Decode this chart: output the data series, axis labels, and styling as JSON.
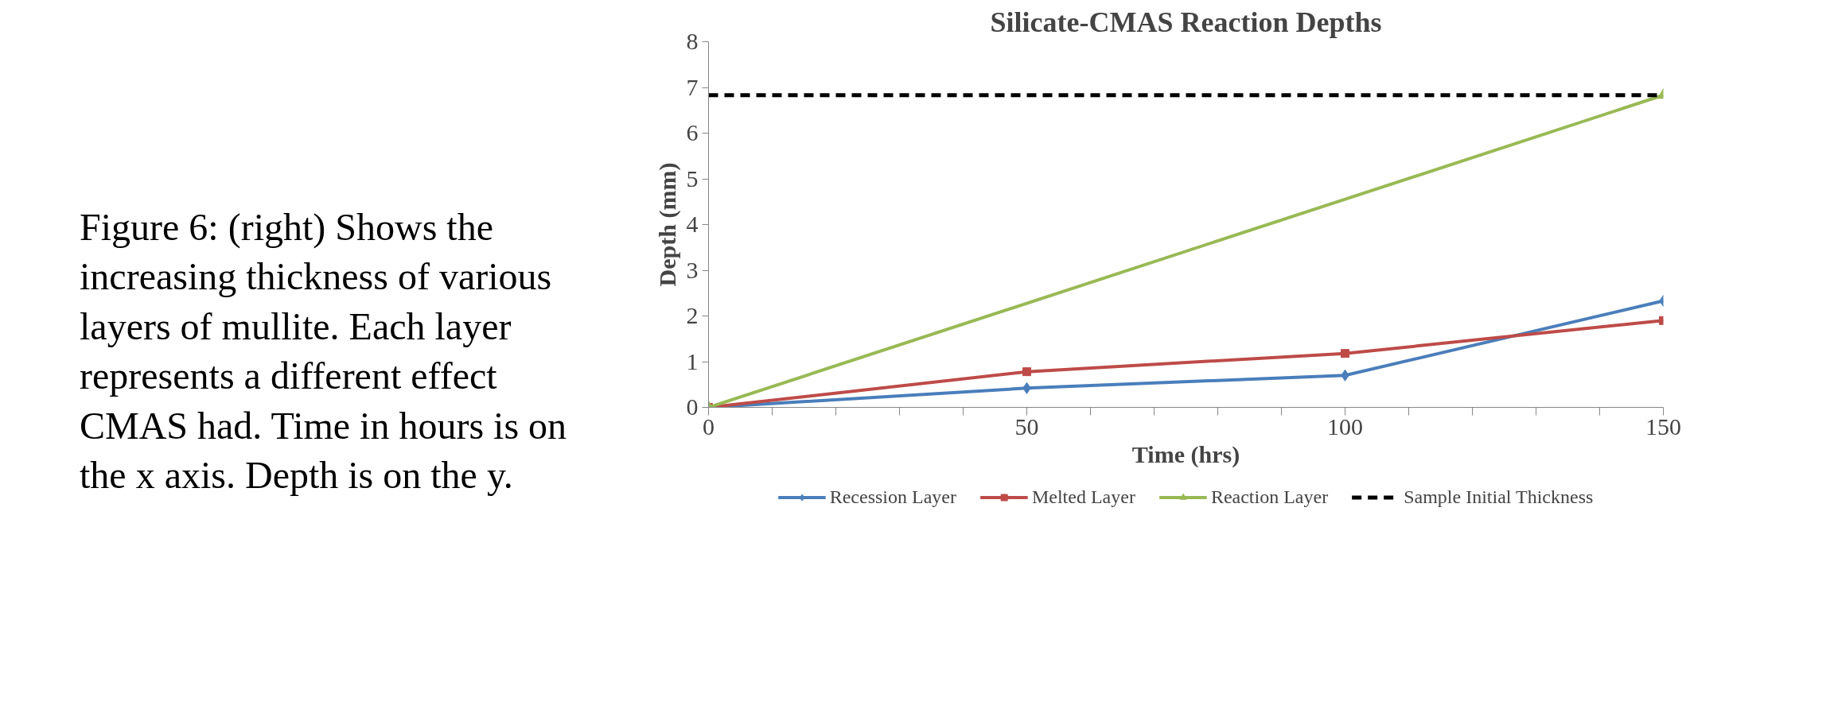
{
  "chart_data": {
    "type": "line",
    "title": "Silicate-CMAS Reaction Depths",
    "xlabel": "Time (hrs)",
    "ylabel": "Depth (mm)",
    "annotations": [
      "Figure 6: (right) Shows the increasing thickness of various layers of mullite. Each layer represents a different effect CMAS had. Time in hours is on the x axis.  Depth is on the y."
    ],
    "x": [
      0,
      50,
      100,
      150
    ],
    "series": [
      {
        "name": "Recession Layer",
        "color": "#4a7ebb",
        "values": [
          0,
          0.42,
          0.7,
          2.33
        ],
        "marker": "diamond",
        "line_style": "solid"
      },
      {
        "name": "Melted Layer",
        "color": "#be4b48",
        "values": [
          0,
          0.78,
          1.18,
          1.9
        ],
        "marker": "square",
        "line_style": "solid"
      },
      {
        "name": "Reaction Layer",
        "color": "#98b954",
        "x": [
          0,
          150
        ],
        "values": [
          0,
          6.83
        ],
        "marker": "triangle",
        "line_style": "solid"
      },
      {
        "name": "Sample Initial Thickness",
        "color": "#000000",
        "values": [
          6.83,
          6.83,
          6.83,
          6.83
        ],
        "marker": "none",
        "line_style": "dashed"
      }
    ],
    "xlim": [
      0,
      150
    ],
    "ylim": [
      0,
      8
    ],
    "xticks": [
      0,
      {
        "value": 10,
        "label": null
      },
      {
        "value": 20,
        "label": null
      },
      {
        "value": 30,
        "label": null
      },
      {
        "value": 40,
        "label": null
      },
      50,
      {
        "value": 60,
        "label": null
      },
      {
        "value": 70,
        "label": null
      },
      {
        "value": 80,
        "label": null
      },
      {
        "value": 90,
        "label": null
      },
      100,
      {
        "value": 110,
        "label": null
      },
      {
        "value": 120,
        "label": null
      },
      {
        "value": 130,
        "label": null
      },
      {
        "value": 140,
        "label": null
      },
      150
    ],
    "yticks": [
      0,
      1,
      2,
      3,
      4,
      5,
      6,
      7,
      8
    ],
    "grid": false,
    "legend": "bottom"
  }
}
